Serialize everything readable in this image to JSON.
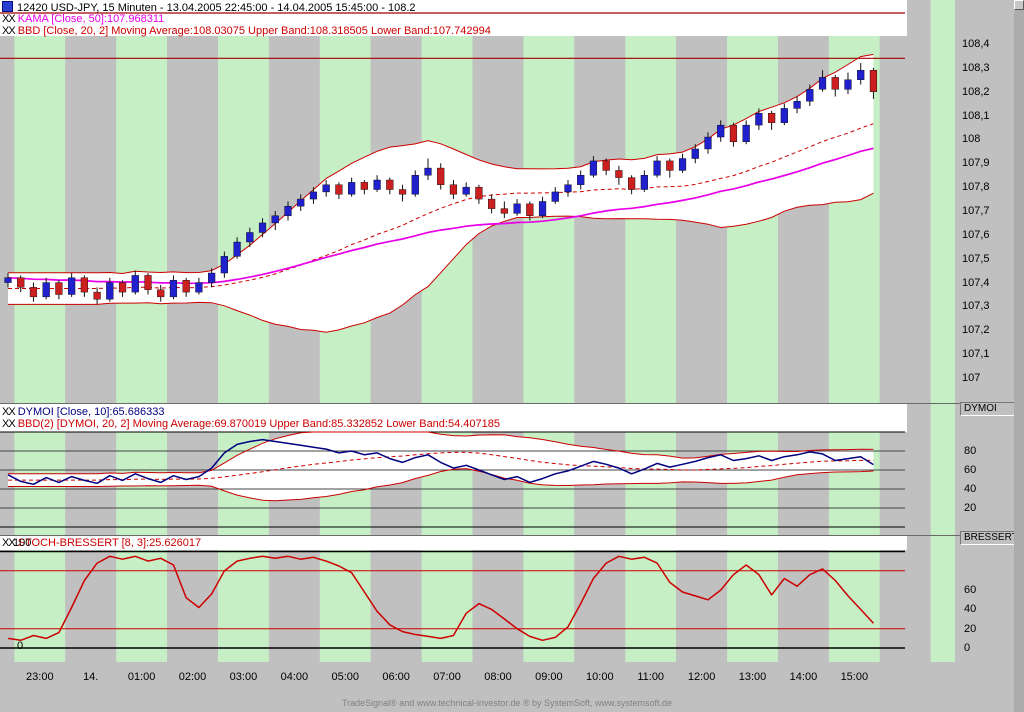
{
  "window": {
    "title": "12420  USD-JPY, 15 Minuten - 13.04.2005 22:45:00 - 14.04.2005 15:45:00 - 108.2",
    "footer": "TradeSignal® and www.technical-investor.de ® by SystemSoft, www.systemsoft.de"
  },
  "legends": {
    "toggle": "XX",
    "kama": "KAMA [Close, 50]:107.968311",
    "bbd": "BBD [Close, 20, 2] Moving Average:108.03075 Upper Band:108.318505 Lower Band:107.742994",
    "dymoi": "DYMOI [Close, 10]:65.686333",
    "dymoi_bbd": "BBD(2) [DYMOI, 20, 2] Moving Average:69.870019 Upper Band:85.332852 Lower Band:54.407185",
    "bressert": "STOCH-BRESSERT [8, 3]:25.626017"
  },
  "panels": {
    "dymoi_label": "DYMOI",
    "bressert_label": "BRESSERT"
  },
  "axes": {
    "price_labels": [
      "108,4",
      "108,3",
      "108,2",
      "108,1",
      "108",
      "107,9",
      "107,8",
      "107,7",
      "107,6",
      "107,5",
      "107,4",
      "107,3",
      "107,2",
      "107,1",
      "107"
    ],
    "dymoi_labels": [
      "80",
      "60",
      "40",
      "20"
    ],
    "bressert_right_labels": [
      "60",
      "40",
      "20",
      "0"
    ],
    "bressert_left_labels": [
      "100",
      "0"
    ],
    "time_labels": [
      "23:00",
      "14.",
      "01:00",
      "02:00",
      "03:00",
      "04:00",
      "05:00",
      "06:00",
      "07:00",
      "08:00",
      "09:00",
      "10:00",
      "11:00",
      "12:00",
      "13:00",
      "14:00",
      "15:00"
    ]
  },
  "colors": {
    "stripe_green": "#c6efc6",
    "stripe_gray": "#c0c0c0",
    "band_fill": "#ffffff",
    "band_line": "#cc0000",
    "kama": "#e800e8",
    "dymoi": "#000080",
    "bressert": "#cc0000",
    "up": "#2020cc",
    "down": "#cc2020",
    "hline": "#a00000"
  },
  "chart_data": [
    {
      "type": "candlestick",
      "title": "12420 USD-JPY, 15 Minuten",
      "range": "13.04.2005 22:45:00 - 14.04.2005 15:45:00",
      "last": 108.2,
      "x": {
        "first_bar": "13.04.2005 22:45",
        "bars": 69,
        "step_minutes": 15
      },
      "ylim": [
        106.95,
        108.55
      ],
      "y_ticks": [
        108.4,
        108.3,
        108.2,
        108.1,
        108.0,
        107.9,
        107.8,
        107.7,
        107.6,
        107.5,
        107.4,
        107.3,
        107.2,
        107.1,
        107.0
      ],
      "horizontal_lines": [
        108.53,
        108.34
      ],
      "indicators": {
        "kama_period": 50,
        "kama_value": 107.968311,
        "bb_period": 20,
        "bb_width": 2,
        "bb_ma": 108.03075,
        "bb_upper": 108.318505,
        "bb_lower": 107.742994
      },
      "ohlc": [
        [
          107.4,
          107.44,
          107.38,
          107.42
        ],
        [
          107.42,
          107.43,
          107.36,
          107.38
        ],
        [
          107.38,
          107.4,
          107.32,
          107.34
        ],
        [
          107.34,
          107.42,
          107.33,
          107.4
        ],
        [
          107.4,
          107.41,
          107.33,
          107.35
        ],
        [
          107.35,
          107.44,
          107.34,
          107.42
        ],
        [
          107.42,
          107.43,
          107.34,
          107.36
        ],
        [
          107.36,
          107.38,
          107.31,
          107.33
        ],
        [
          107.33,
          107.42,
          107.32,
          107.4
        ],
        [
          107.4,
          107.41,
          107.34,
          107.36
        ],
        [
          107.36,
          107.45,
          107.35,
          107.43
        ],
        [
          107.43,
          107.44,
          107.35,
          107.37
        ],
        [
          107.37,
          107.39,
          107.32,
          107.34
        ],
        [
          107.34,
          107.43,
          107.33,
          107.41
        ],
        [
          107.41,
          107.42,
          107.34,
          107.36
        ],
        [
          107.36,
          107.42,
          107.35,
          107.4
        ],
        [
          107.4,
          107.46,
          107.38,
          107.44
        ],
        [
          107.44,
          107.53,
          107.42,
          107.51
        ],
        [
          107.51,
          107.59,
          107.5,
          107.57
        ],
        [
          107.57,
          107.63,
          107.55,
          107.61
        ],
        [
          107.61,
          107.67,
          107.59,
          107.65
        ],
        [
          107.65,
          107.7,
          107.62,
          107.68
        ],
        [
          107.68,
          107.74,
          107.66,
          107.72
        ],
        [
          107.72,
          107.77,
          107.7,
          107.75
        ],
        [
          107.75,
          107.8,
          107.73,
          107.78
        ],
        [
          107.78,
          107.83,
          107.76,
          107.81
        ],
        [
          107.81,
          107.82,
          107.75,
          107.77
        ],
        [
          107.77,
          107.84,
          107.76,
          107.82
        ],
        [
          107.82,
          107.83,
          107.77,
          107.79
        ],
        [
          107.79,
          107.85,
          107.78,
          107.83
        ],
        [
          107.83,
          107.84,
          107.77,
          107.79
        ],
        [
          107.79,
          107.81,
          107.74,
          107.77
        ],
        [
          107.77,
          107.87,
          107.76,
          107.85
        ],
        [
          107.85,
          107.92,
          107.83,
          107.88
        ],
        [
          107.88,
          107.9,
          107.79,
          107.81
        ],
        [
          107.81,
          107.83,
          107.75,
          107.77
        ],
        [
          107.77,
          107.82,
          107.76,
          107.8
        ],
        [
          107.8,
          107.81,
          107.73,
          107.75
        ],
        [
          107.75,
          107.77,
          107.69,
          107.71
        ],
        [
          107.71,
          107.74,
          107.67,
          107.69
        ],
        [
          107.69,
          107.75,
          107.68,
          107.73
        ],
        [
          107.73,
          107.74,
          107.66,
          107.68
        ],
        [
          107.68,
          107.76,
          107.67,
          107.74
        ],
        [
          107.74,
          107.8,
          107.73,
          107.78
        ],
        [
          107.78,
          107.83,
          107.76,
          107.81
        ],
        [
          107.81,
          107.87,
          107.79,
          107.85
        ],
        [
          107.85,
          107.93,
          107.84,
          107.91
        ],
        [
          107.91,
          107.92,
          107.85,
          107.87
        ],
        [
          107.87,
          107.89,
          107.81,
          107.84
        ],
        [
          107.84,
          107.85,
          107.77,
          107.79
        ],
        [
          107.79,
          107.87,
          107.78,
          107.85
        ],
        [
          107.85,
          107.93,
          107.84,
          107.91
        ],
        [
          107.91,
          107.92,
          107.84,
          107.87
        ],
        [
          107.87,
          107.94,
          107.86,
          107.92
        ],
        [
          107.92,
          107.98,
          107.9,
          107.96
        ],
        [
          107.96,
          108.03,
          107.94,
          108.01
        ],
        [
          108.01,
          108.08,
          107.99,
          108.06
        ],
        [
          108.06,
          108.07,
          107.97,
          107.99
        ],
        [
          107.99,
          108.08,
          107.98,
          108.06
        ],
        [
          108.06,
          108.13,
          108.04,
          108.11
        ],
        [
          108.11,
          108.12,
          108.04,
          108.07
        ],
        [
          108.07,
          108.15,
          108.06,
          108.13
        ],
        [
          108.13,
          108.18,
          108.11,
          108.16
        ],
        [
          108.16,
          108.23,
          108.14,
          108.21
        ],
        [
          108.21,
          108.29,
          108.2,
          108.26
        ],
        [
          108.26,
          108.27,
          108.18,
          108.21
        ],
        [
          108.21,
          108.28,
          108.19,
          108.25
        ],
        [
          108.25,
          108.32,
          108.23,
          108.29
        ],
        [
          108.29,
          108.3,
          108.17,
          108.2
        ]
      ]
    },
    {
      "type": "line",
      "name": "DYMOI",
      "params": "[Close, 10]",
      "value": 65.686333,
      "ylim": [
        0,
        100
      ],
      "y_ticks": [
        80,
        60,
        40,
        20
      ],
      "gridlines": [
        100,
        80,
        60,
        40,
        20,
        0
      ],
      "band": {
        "period": 20,
        "width": 2,
        "ma": 69.870019,
        "upper": 85.332852,
        "lower": 54.407185
      },
      "values": [
        55,
        48,
        45,
        52,
        47,
        53,
        49,
        46,
        54,
        49,
        56,
        51,
        47,
        54,
        50,
        53,
        62,
        78,
        87,
        90,
        92,
        90,
        88,
        86,
        84,
        82,
        78,
        80,
        76,
        78,
        72,
        68,
        73,
        76,
        68,
        62,
        65,
        60,
        55,
        50,
        53,
        47,
        51,
        56,
        59,
        64,
        69,
        66,
        62,
        56,
        61,
        67,
        63,
        66,
        69,
        73,
        76,
        70,
        72,
        75,
        70,
        74,
        76,
        79,
        77,
        70,
        72,
        74,
        65.686333
      ]
    },
    {
      "type": "line",
      "name": "STOCH-BRESSERT",
      "params": "[8, 3]",
      "value": 25.626017,
      "ylim": [
        0,
        100
      ],
      "y_ticks_right": [
        60,
        40,
        20,
        0
      ],
      "y_ticks_left": [
        100,
        0
      ],
      "levels": [
        80,
        20
      ],
      "bounds": [
        100,
        0
      ],
      "values": [
        10,
        8,
        13,
        10,
        16,
        42,
        70,
        88,
        95,
        92,
        95,
        90,
        93,
        86,
        52,
        42,
        56,
        80,
        90,
        93,
        95,
        93,
        95,
        92,
        94,
        90,
        85,
        78,
        58,
        38,
        24,
        17,
        14,
        12,
        10,
        13,
        36,
        46,
        40,
        30,
        20,
        12,
        8,
        11,
        22,
        46,
        72,
        88,
        95,
        92,
        94,
        88,
        68,
        58,
        54,
        50,
        60,
        76,
        86,
        76,
        55,
        72,
        64,
        76,
        82,
        70,
        54,
        40,
        25.626017
      ]
    }
  ]
}
